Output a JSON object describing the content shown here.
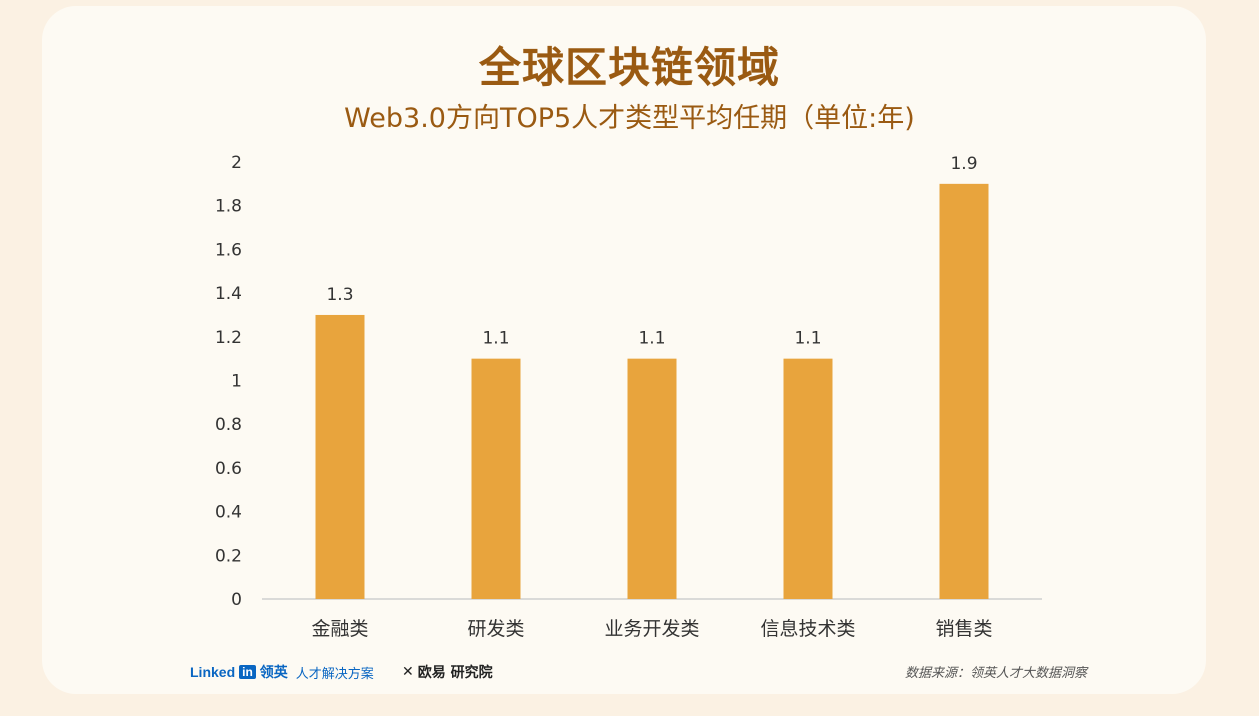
{
  "header": {
    "title": "全球区块链领域",
    "subtitle": "Web3.0方向TOP5人才类型平均任期（单位:年)"
  },
  "chart_data": {
    "type": "bar",
    "categories": [
      "金融类",
      "研发类",
      "业务开发类",
      "信息技术类",
      "销售类"
    ],
    "values": [
      1.3,
      1.1,
      1.1,
      1.1,
      1.9
    ],
    "data_labels": [
      "1.3",
      "1.1",
      "1.1",
      "1.1",
      "1.9"
    ],
    "ylim": [
      0,
      2
    ],
    "yticks": [
      "0",
      "0.2",
      "0.4",
      "0.6",
      "0.8",
      "1",
      "1.2",
      "1.4",
      "1.6",
      "1.8",
      "2"
    ],
    "xlabel": "",
    "ylabel": "",
    "grid": false,
    "bar_color": "#e8a43d"
  },
  "footer": {
    "linkedin_text": "Linked",
    "linkedin_in": "in",
    "lingying": "领英",
    "solution": "人才解决方案",
    "okx_logo": "✕",
    "okx_name": "欧易 研究院",
    "source": "数据来源：领英人才大数据洞察"
  },
  "colors": {
    "title": "#9a5a12",
    "background": "#fbf1e3",
    "card": "#fdfaf3",
    "linkedin": "#0a66c2"
  }
}
